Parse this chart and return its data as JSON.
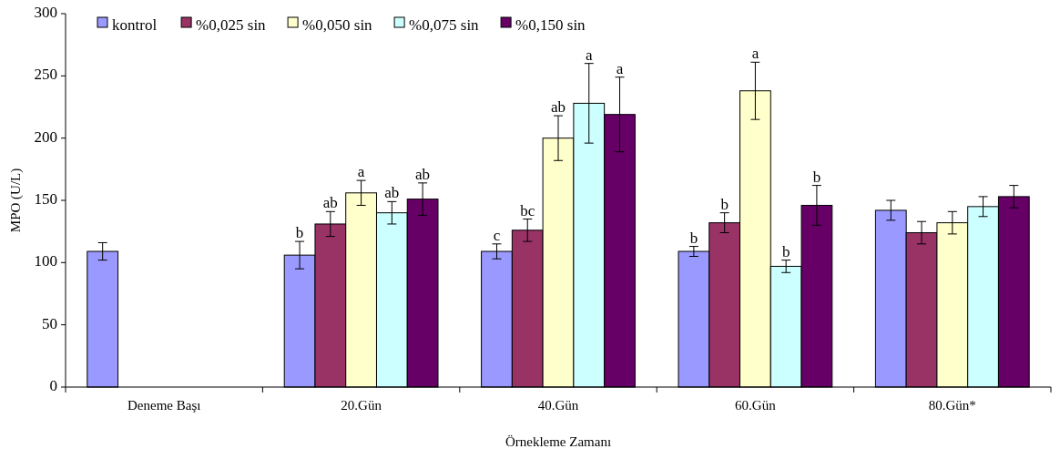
{
  "chart_data": {
    "type": "bar",
    "xlabel": "Örnekleme Zamanı",
    "ylabel": "MPO (U/L)",
    "categories": [
      "Deneme Başı",
      "20.Gün",
      "40.Gün",
      "60.Gün",
      "80.Gün*"
    ],
    "ylim": [
      0,
      300
    ],
    "yticks": [
      0,
      50,
      100,
      150,
      200,
      250,
      300
    ],
    "grid": false,
    "legend": "top left",
    "series": [
      {
        "name": "kontrol",
        "color": "#9999ff",
        "values": [
          109,
          106,
          109,
          109,
          142
        ],
        "errors": [
          7,
          11,
          6,
          4,
          8
        ],
        "value_labels": [
          null,
          "b",
          "c",
          "b",
          null
        ]
      },
      {
        "name": "%0,025 sin",
        "color": "#993366",
        "values": [
          null,
          131,
          126,
          132,
          124
        ],
        "errors": [
          null,
          10,
          9,
          8,
          9
        ],
        "value_labels": [
          null,
          "ab",
          "bc",
          "b",
          null
        ]
      },
      {
        "name": "%0,050 sin",
        "color": "#ffffcc",
        "values": [
          null,
          156,
          200,
          238,
          132
        ],
        "errors": [
          null,
          10,
          18,
          23,
          9
        ],
        "value_labels": [
          null,
          "a",
          "ab",
          "a",
          null
        ]
      },
      {
        "name": "%0,075 sin",
        "color": "#ccffff",
        "values": [
          null,
          140,
          228,
          97,
          145
        ],
        "errors": [
          null,
          9,
          32,
          5,
          8
        ],
        "value_labels": [
          null,
          "ab",
          "a",
          "b",
          null
        ]
      },
      {
        "name": "%0,150 sin",
        "color": "#660066",
        "values": [
          null,
          151,
          219,
          146,
          153
        ],
        "errors": [
          null,
          13,
          30,
          16,
          9
        ],
        "value_labels": [
          null,
          "ab",
          "a",
          "b",
          null
        ]
      }
    ]
  }
}
